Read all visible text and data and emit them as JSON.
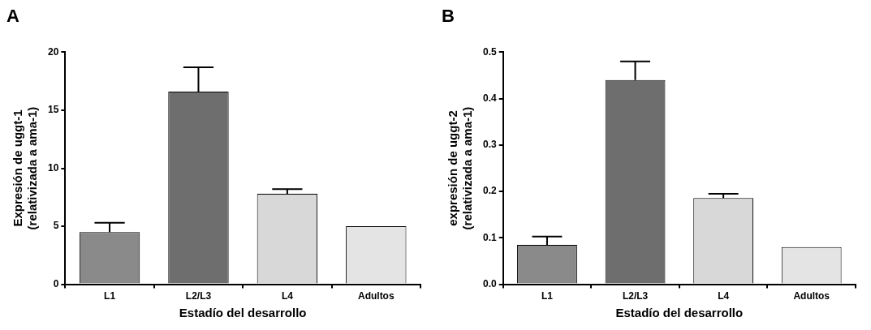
{
  "chart_data": [
    {
      "type": "bar",
      "title": "A",
      "xlabel": "Estadío del desarrollo",
      "ylabel": "Expresión de uggt-1\n(relativizada a ama-1)",
      "categories": [
        "L1",
        "L2/L3",
        "L4",
        "Adultos"
      ],
      "values": [
        4.5,
        16.6,
        7.8,
        5.0
      ],
      "errors": [
        0.8,
        2.1,
        0.4,
        null
      ],
      "colors": [
        "#8a8a8a",
        "#6e6e6e",
        "#d8d8d8",
        "#e4e4e4"
      ],
      "ylim": [
        0,
        20
      ],
      "yticks": [
        0,
        5,
        10,
        15,
        20
      ],
      "grid": false,
      "legend": false
    },
    {
      "type": "bar",
      "title": "B",
      "xlabel": "Estadío del desarrollo",
      "ylabel": "expresión de uggt-2\n(relativizada a ama-1)",
      "categories": [
        "L1",
        "L2/L3",
        "L4",
        "Adultos"
      ],
      "values": [
        0.085,
        0.44,
        0.186,
        0.08
      ],
      "errors": [
        0.018,
        0.04,
        0.009,
        null
      ],
      "colors": [
        "#8a8a8a",
        "#6e6e6e",
        "#d8d8d8",
        "#e4e4e4"
      ],
      "ylim": [
        0,
        0.5
      ],
      "yticks": [
        {
          "value": 0,
          "label": "0.0"
        },
        0.1,
        0.2,
        0.3,
        0.4,
        0.5
      ],
      "grid": false,
      "legend": false
    }
  ]
}
